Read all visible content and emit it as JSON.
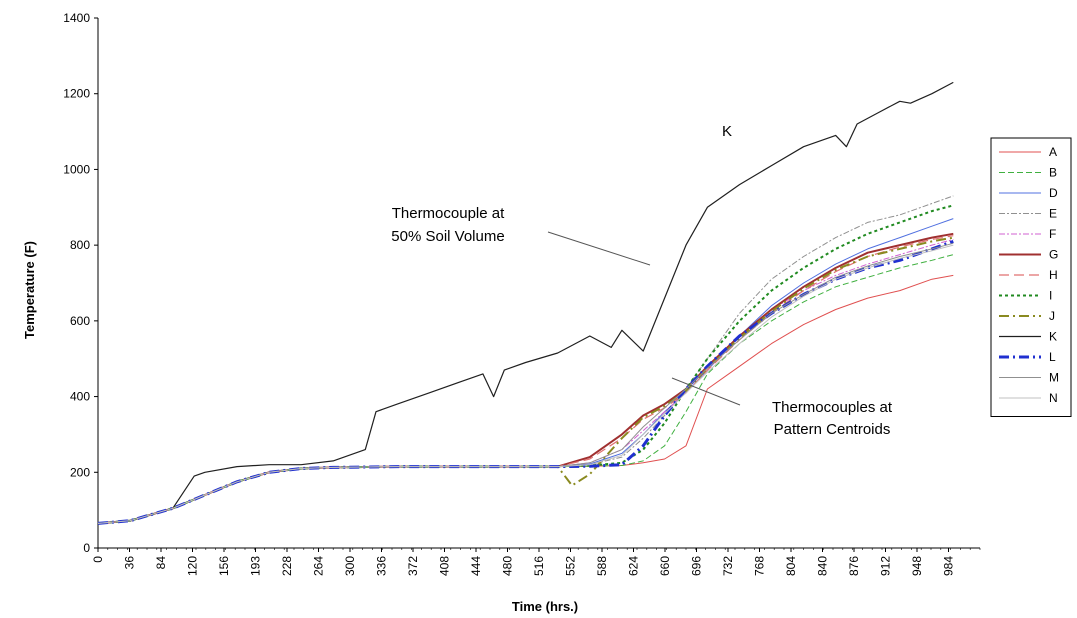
{
  "chart_data": {
    "type": "line",
    "title": "",
    "xlabel": "Time (hrs.)",
    "ylabel": "Temperature (F)",
    "xlim": [
      0,
      990
    ],
    "ylim": [
      0,
      1400
    ],
    "y_ticks": [
      0,
      200,
      400,
      600,
      800,
      1000,
      1200,
      1400
    ],
    "x_tick_labels": [
      "0",
      "36",
      "84",
      "120",
      "156",
      "193",
      "228",
      "264",
      "300",
      "336",
      "372",
      "408",
      "444",
      "480",
      "516",
      "552",
      "588",
      "624",
      "660",
      "696",
      "732",
      "768",
      "804",
      "840",
      "876",
      "912",
      "948",
      "984"
    ],
    "grid": false,
    "legend_position": "right",
    "series": [
      {
        "name": "A",
        "color": "#e05050",
        "dash": "",
        "width": 1,
        "x": [
          0,
          36,
          84,
          120,
          156,
          192,
          228,
          264,
          300,
          336,
          372,
          408,
          444,
          480,
          516,
          552,
          588,
          612,
          636,
          660,
          684,
          720,
          756,
          792,
          828,
          864,
          900,
          936,
          960
        ],
        "y": [
          65,
          72,
          105,
          140,
          175,
          200,
          210,
          213,
          214,
          215,
          215,
          215,
          215,
          215,
          215,
          216,
          218,
          225,
          235,
          270,
          420,
          480,
          540,
          590,
          630,
          660,
          680,
          710,
          720
        ]
      },
      {
        "name": "B",
        "color": "#40b040",
        "dash": "6 3",
        "width": 1,
        "x": [
          0,
          36,
          84,
          120,
          156,
          192,
          228,
          264,
          300,
          336,
          372,
          408,
          444,
          480,
          516,
          552,
          588,
          612,
          636,
          660,
          684,
          720,
          756,
          792,
          828,
          864,
          900,
          936,
          960
        ],
        "y": [
          65,
          72,
          105,
          140,
          175,
          200,
          210,
          213,
          214,
          215,
          215,
          215,
          215,
          215,
          215,
          216,
          218,
          230,
          270,
          360,
          460,
          540,
          600,
          650,
          690,
          715,
          740,
          760,
          775
        ]
      },
      {
        "name": "D",
        "color": "#5070e0",
        "dash": "",
        "width": 1,
        "x": [
          0,
          36,
          84,
          120,
          156,
          192,
          228,
          264,
          300,
          336,
          372,
          408,
          444,
          480,
          516,
          552,
          588,
          612,
          636,
          660,
          684,
          720,
          756,
          792,
          828,
          864,
          900,
          936,
          960
        ],
        "y": [
          65,
          72,
          105,
          140,
          175,
          200,
          210,
          213,
          214,
          215,
          215,
          215,
          215,
          215,
          215,
          222,
          250,
          300,
          360,
          410,
          470,
          560,
          640,
          700,
          750,
          790,
          820,
          850,
          870
        ]
      },
      {
        "name": "E",
        "color": "#909090",
        "dash": "6 2 2 2",
        "width": 1,
        "x": [
          0,
          36,
          84,
          120,
          156,
          192,
          228,
          264,
          300,
          336,
          372,
          408,
          444,
          480,
          516,
          552,
          588,
          612,
          636,
          660,
          684,
          720,
          756,
          792,
          828,
          864,
          900,
          936,
          960
        ],
        "y": [
          65,
          72,
          105,
          140,
          175,
          200,
          210,
          213,
          214,
          215,
          215,
          215,
          215,
          215,
          215,
          220,
          240,
          290,
          350,
          420,
          500,
          620,
          710,
          770,
          820,
          860,
          880,
          910,
          930
        ]
      },
      {
        "name": "F",
        "color": "#d060d0",
        "dash": "6 2 2 2",
        "width": 1,
        "x": [
          0,
          36,
          84,
          120,
          156,
          192,
          228,
          264,
          300,
          336,
          372,
          408,
          444,
          480,
          516,
          552,
          588,
          612,
          636,
          660,
          684,
          720,
          756,
          792,
          828,
          864,
          900,
          936,
          960
        ],
        "y": [
          65,
          72,
          105,
          140,
          175,
          200,
          210,
          213,
          214,
          215,
          215,
          215,
          215,
          215,
          215,
          225,
          260,
          310,
          360,
          410,
          470,
          560,
          630,
          680,
          720,
          750,
          775,
          800,
          815
        ]
      },
      {
        "name": "G",
        "color": "#a03030",
        "dash": "",
        "width": 2,
        "x": [
          0,
          36,
          84,
          120,
          156,
          192,
          228,
          264,
          300,
          336,
          372,
          408,
          444,
          480,
          516,
          552,
          588,
          612,
          636,
          660,
          684,
          720,
          756,
          792,
          828,
          864,
          900,
          936,
          960
        ],
        "y": [
          65,
          72,
          105,
          140,
          175,
          200,
          210,
          213,
          214,
          215,
          215,
          215,
          215,
          215,
          215,
          240,
          300,
          350,
          380,
          420,
          480,
          560,
          630,
          690,
          740,
          780,
          800,
          820,
          830
        ]
      },
      {
        "name": "H",
        "color": "#e07070",
        "dash": "10 5",
        "width": 1.2,
        "x": [
          0,
          36,
          84,
          120,
          156,
          192,
          228,
          264,
          300,
          336,
          372,
          408,
          444,
          480,
          516,
          552,
          588,
          612,
          636,
          660,
          684,
          720,
          756,
          792,
          828,
          864,
          900,
          936,
          960
        ],
        "y": [
          65,
          72,
          105,
          140,
          175,
          200,
          210,
          213,
          214,
          215,
          215,
          215,
          215,
          215,
          215,
          235,
          290,
          340,
          370,
          410,
          470,
          550,
          620,
          680,
          730,
          770,
          795,
          815,
          825
        ]
      },
      {
        "name": "I",
        "color": "#208a20",
        "dash": "3 3",
        "width": 2,
        "x": [
          0,
          36,
          84,
          120,
          156,
          192,
          228,
          264,
          300,
          336,
          372,
          408,
          444,
          480,
          516,
          552,
          588,
          612,
          636,
          660,
          684,
          720,
          756,
          792,
          828,
          864,
          900,
          936,
          960
        ],
        "y": [
          65,
          72,
          105,
          140,
          175,
          200,
          210,
          213,
          214,
          215,
          215,
          215,
          215,
          215,
          215,
          218,
          225,
          260,
          330,
          420,
          500,
          600,
          680,
          740,
          790,
          830,
          860,
          890,
          905
        ]
      },
      {
        "name": "J",
        "color": "#8a8a20",
        "dash": "10 4 2 4",
        "width": 2,
        "x": [
          0,
          36,
          84,
          120,
          156,
          192,
          228,
          264,
          300,
          336,
          372,
          408,
          444,
          480,
          516,
          532,
          552,
          588,
          612,
          636,
          660,
          684,
          720,
          756,
          792,
          828,
          864,
          900,
          936,
          960
        ],
        "y": [
          65,
          72,
          105,
          140,
          175,
          200,
          210,
          213,
          214,
          215,
          215,
          215,
          215,
          215,
          215,
          165,
          195,
          290,
          345,
          375,
          415,
          475,
          555,
          625,
          685,
          735,
          770,
          790,
          810,
          820
        ]
      },
      {
        "name": "K",
        "color": "#202020",
        "dash": "",
        "width": 1.2,
        "x": [
          0,
          36,
          84,
          108,
          120,
          156,
          192,
          228,
          264,
          300,
          312,
          336,
          372,
          408,
          432,
          444,
          456,
          480,
          516,
          552,
          576,
          588,
          612,
          636,
          660,
          684,
          720,
          756,
          792,
          828,
          840,
          852,
          876,
          900,
          912,
          936,
          960
        ],
        "y": [
          65,
          72,
          105,
          190,
          200,
          215,
          220,
          220,
          230,
          260,
          360,
          380,
          410,
          440,
          460,
          400,
          470,
          490,
          515,
          560,
          530,
          575,
          520,
          660,
          800,
          900,
          960,
          1010,
          1060,
          1090,
          1060,
          1120,
          1150,
          1180,
          1175,
          1200,
          1230
        ]
      },
      {
        "name": "L",
        "color": "#2030d0",
        "dash": "10 4 2 4",
        "width": 3,
        "x": [
          0,
          36,
          84,
          120,
          156,
          192,
          228,
          264,
          300,
          336,
          372,
          408,
          444,
          480,
          516,
          552,
          588,
          612,
          636,
          660,
          684,
          720,
          756,
          792,
          828,
          864,
          900,
          936,
          960
        ],
        "y": [
          65,
          72,
          105,
          140,
          175,
          200,
          210,
          213,
          214,
          215,
          215,
          215,
          215,
          215,
          215,
          216,
          220,
          270,
          350,
          420,
          480,
          560,
          620,
          670,
          710,
          740,
          760,
          790,
          810
        ]
      },
      {
        "name": "M",
        "color": "#909090",
        "dash": "",
        "width": 1,
        "x": [
          0,
          36,
          84,
          120,
          156,
          192,
          228,
          264,
          300,
          336,
          372,
          408,
          444,
          480,
          516,
          552,
          588,
          612,
          636,
          660,
          684,
          720,
          756,
          792,
          828,
          864,
          900,
          936,
          960
        ],
        "y": [
          65,
          72,
          105,
          140,
          175,
          200,
          210,
          213,
          214,
          215,
          215,
          215,
          215,
          215,
          215,
          225,
          260,
          320,
          370,
          420,
          475,
          550,
          620,
          670,
          715,
          745,
          770,
          790,
          805
        ]
      },
      {
        "name": "N",
        "color": "#c0c0c0",
        "dash": "",
        "width": 1,
        "x": [
          0,
          36,
          84,
          120,
          156,
          192,
          228,
          264,
          300,
          336,
          372,
          408,
          444,
          480,
          516,
          552,
          588,
          612,
          636,
          660,
          684,
          720,
          756,
          792,
          828,
          864,
          900,
          936,
          960
        ],
        "y": [
          65,
          72,
          105,
          140,
          175,
          200,
          210,
          213,
          214,
          215,
          215,
          215,
          215,
          215,
          215,
          220,
          245,
          300,
          355,
          410,
          465,
          540,
          610,
          665,
          710,
          740,
          765,
          785,
          800
        ]
      }
    ],
    "annotations": [
      {
        "id": "k-label",
        "text": "K"
      },
      {
        "id": "soil",
        "text_lines": [
          "Thermocouple at",
          "50% Soil Volume"
        ]
      },
      {
        "id": "centroids",
        "text_lines": [
          "Thermocouples at",
          "Pattern Centroids"
        ]
      }
    ]
  }
}
